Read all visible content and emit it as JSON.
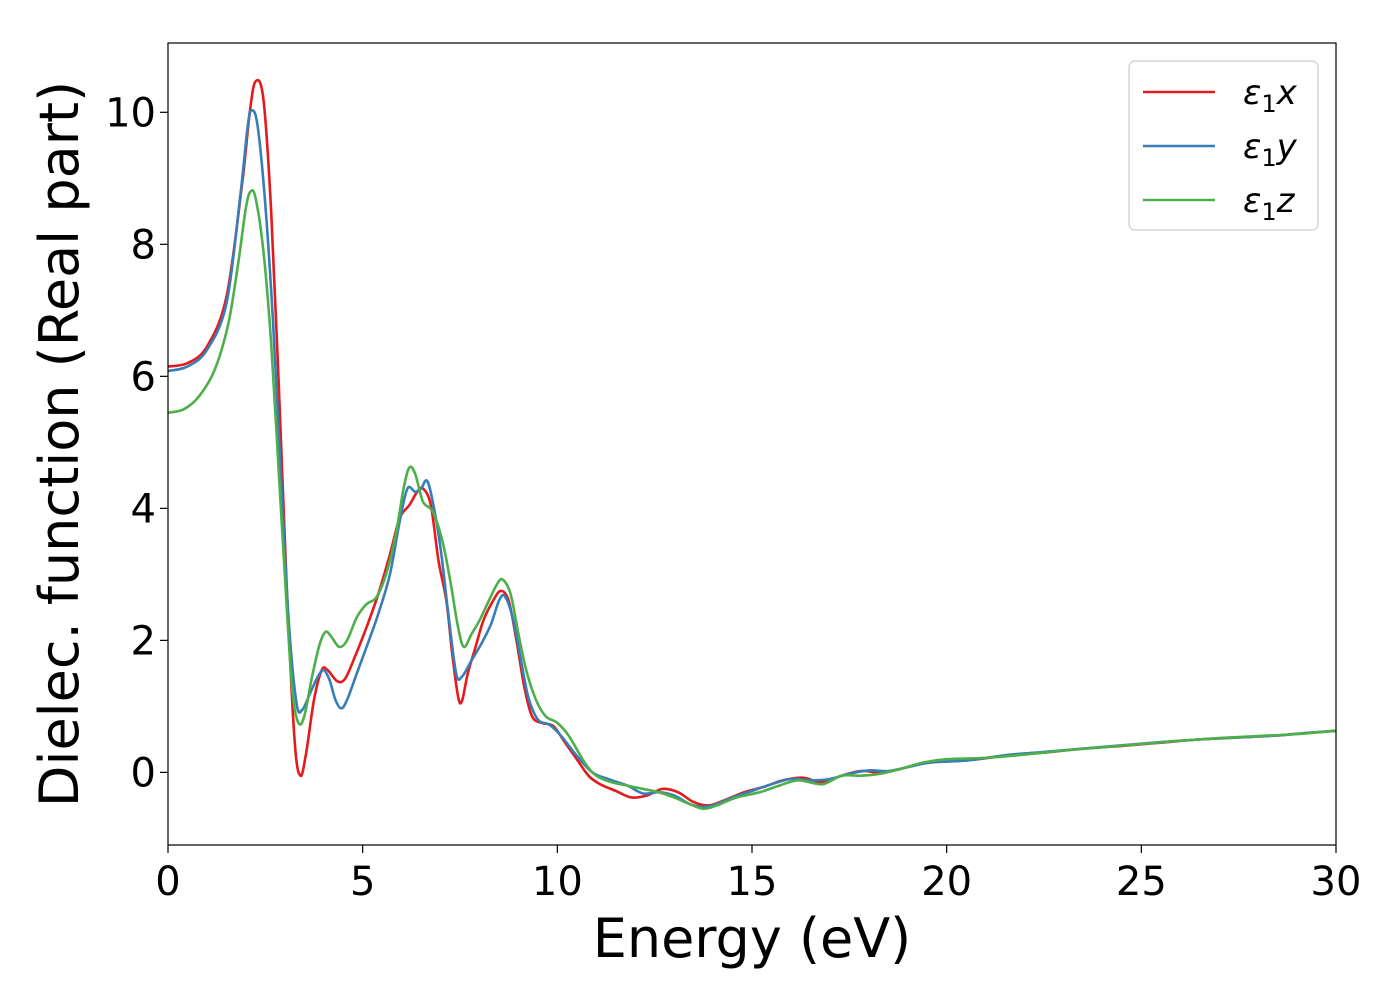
{
  "chart_data": {
    "type": "line",
    "title": "",
    "xlabel": "Energy (eV)",
    "ylabel": "Dielec. function (Real part)",
    "xlim": [
      0,
      30
    ],
    "ylim": [
      -1.1,
      11.05
    ],
    "xticks": [
      0,
      5,
      10,
      15,
      20,
      25,
      30
    ],
    "yticks": [
      0,
      2,
      4,
      6,
      8,
      10
    ],
    "grid": false,
    "legend": "top-right",
    "series": [
      {
        "name": "ε1x",
        "legend_base": "ε",
        "legend_sub": "1",
        "legend_var": "x",
        "color": "#e41a1c",
        "points": [
          [
            0,
            6.15
          ],
          [
            0.5,
            6.2
          ],
          [
            1.0,
            6.45
          ],
          [
            1.5,
            7.2
          ],
          [
            1.9,
            8.9
          ],
          [
            2.1,
            10.0
          ],
          [
            2.25,
            10.47
          ],
          [
            2.45,
            10.2
          ],
          [
            2.65,
            8.5
          ],
          [
            2.85,
            5.8
          ],
          [
            3.05,
            2.8
          ],
          [
            3.25,
            0.5
          ],
          [
            3.4,
            -0.05
          ],
          [
            3.55,
            0.3
          ],
          [
            3.75,
            1.1
          ],
          [
            3.95,
            1.55
          ],
          [
            4.1,
            1.55
          ],
          [
            4.35,
            1.38
          ],
          [
            4.55,
            1.42
          ],
          [
            4.8,
            1.75
          ],
          [
            5.1,
            2.2
          ],
          [
            5.4,
            2.7
          ],
          [
            5.7,
            3.3
          ],
          [
            5.95,
            3.85
          ],
          [
            6.2,
            4.05
          ],
          [
            6.4,
            4.25
          ],
          [
            6.55,
            4.3
          ],
          [
            6.75,
            4.05
          ],
          [
            6.95,
            3.2
          ],
          [
            7.15,
            2.6
          ],
          [
            7.3,
            1.8
          ],
          [
            7.45,
            1.15
          ],
          [
            7.55,
            1.08
          ],
          [
            7.7,
            1.5
          ],
          [
            7.9,
            1.9
          ],
          [
            8.1,
            2.3
          ],
          [
            8.35,
            2.6
          ],
          [
            8.55,
            2.75
          ],
          [
            8.75,
            2.6
          ],
          [
            8.95,
            2.0
          ],
          [
            9.15,
            1.3
          ],
          [
            9.35,
            0.85
          ],
          [
            9.6,
            0.75
          ],
          [
            9.9,
            0.7
          ],
          [
            10.2,
            0.45
          ],
          [
            10.5,
            0.2
          ],
          [
            10.8,
            -0.05
          ],
          [
            11.1,
            -0.18
          ],
          [
            11.5,
            -0.28
          ],
          [
            11.9,
            -0.38
          ],
          [
            12.3,
            -0.35
          ],
          [
            12.7,
            -0.25
          ],
          [
            13.1,
            -0.3
          ],
          [
            13.5,
            -0.45
          ],
          [
            13.9,
            -0.5
          ],
          [
            14.3,
            -0.42
          ],
          [
            14.8,
            -0.3
          ],
          [
            15.3,
            -0.22
          ],
          [
            15.8,
            -0.12
          ],
          [
            16.3,
            -0.08
          ],
          [
            16.8,
            -0.15
          ],
          [
            17.3,
            -0.05
          ],
          [
            17.8,
            0.02
          ],
          [
            18.3,
            0.0
          ],
          [
            18.8,
            0.05
          ],
          [
            19.5,
            0.15
          ],
          [
            20.5,
            0.18
          ],
          [
            21.5,
            0.25
          ],
          [
            22.5,
            0.3
          ],
          [
            23.5,
            0.36
          ],
          [
            24.5,
            0.4
          ],
          [
            25.5,
            0.45
          ],
          [
            26.5,
            0.5
          ],
          [
            27.5,
            0.53
          ],
          [
            28.5,
            0.56
          ],
          [
            29.3,
            0.6
          ],
          [
            30,
            0.63
          ]
        ]
      },
      {
        "name": "ε1y",
        "legend_base": "ε",
        "legend_sub": "1",
        "legend_var": "y",
        "color": "#377eb8",
        "points": [
          [
            0,
            6.08
          ],
          [
            0.5,
            6.15
          ],
          [
            1.0,
            6.4
          ],
          [
            1.5,
            7.1
          ],
          [
            1.85,
            8.7
          ],
          [
            2.05,
            9.8
          ],
          [
            2.15,
            10.03
          ],
          [
            2.3,
            9.8
          ],
          [
            2.5,
            8.6
          ],
          [
            2.7,
            6.8
          ],
          [
            2.9,
            4.5
          ],
          [
            3.1,
            2.3
          ],
          [
            3.3,
            1.05
          ],
          [
            3.45,
            0.95
          ],
          [
            3.65,
            1.2
          ],
          [
            3.85,
            1.45
          ],
          [
            4.0,
            1.55
          ],
          [
            4.15,
            1.4
          ],
          [
            4.3,
            1.1
          ],
          [
            4.45,
            0.97
          ],
          [
            4.6,
            1.1
          ],
          [
            4.85,
            1.5
          ],
          [
            5.1,
            1.9
          ],
          [
            5.4,
            2.4
          ],
          [
            5.7,
            3.0
          ],
          [
            5.95,
            3.8
          ],
          [
            6.15,
            4.3
          ],
          [
            6.35,
            4.25
          ],
          [
            6.5,
            4.3
          ],
          [
            6.65,
            4.42
          ],
          [
            6.8,
            4.1
          ],
          [
            7.0,
            3.4
          ],
          [
            7.2,
            2.4
          ],
          [
            7.4,
            1.5
          ],
          [
            7.55,
            1.45
          ],
          [
            7.8,
            1.7
          ],
          [
            8.05,
            1.95
          ],
          [
            8.3,
            2.25
          ],
          [
            8.5,
            2.6
          ],
          [
            8.65,
            2.67
          ],
          [
            8.85,
            2.35
          ],
          [
            9.05,
            1.75
          ],
          [
            9.25,
            1.15
          ],
          [
            9.5,
            0.8
          ],
          [
            9.8,
            0.72
          ],
          [
            10.1,
            0.55
          ],
          [
            10.5,
            0.25
          ],
          [
            10.9,
            0.0
          ],
          [
            11.3,
            -0.1
          ],
          [
            11.8,
            -0.2
          ],
          [
            12.2,
            -0.32
          ],
          [
            12.6,
            -0.3
          ],
          [
            13.0,
            -0.35
          ],
          [
            13.4,
            -0.48
          ],
          [
            13.7,
            -0.52
          ],
          [
            14.0,
            -0.5
          ],
          [
            14.5,
            -0.38
          ],
          [
            15.0,
            -0.28
          ],
          [
            15.5,
            -0.18
          ],
          [
            16.0,
            -0.1
          ],
          [
            16.5,
            -0.12
          ],
          [
            17.0,
            -0.1
          ],
          [
            17.5,
            -0.02
          ],
          [
            18.0,
            0.03
          ],
          [
            18.5,
            0.02
          ],
          [
            19.0,
            0.08
          ],
          [
            19.6,
            0.15
          ],
          [
            20.5,
            0.18
          ],
          [
            21.5,
            0.26
          ],
          [
            22.5,
            0.31
          ],
          [
            23.5,
            0.36
          ],
          [
            24.5,
            0.41
          ],
          [
            25.5,
            0.46
          ],
          [
            26.5,
            0.5
          ],
          [
            27.5,
            0.53
          ],
          [
            28.5,
            0.56
          ],
          [
            29.3,
            0.6
          ],
          [
            30,
            0.63
          ]
        ]
      },
      {
        "name": "ε1z",
        "legend_base": "ε",
        "legend_sub": "1",
        "legend_var": "z",
        "color": "#4daf4a",
        "points": [
          [
            0,
            5.45
          ],
          [
            0.4,
            5.5
          ],
          [
            0.8,
            5.7
          ],
          [
            1.2,
            6.1
          ],
          [
            1.55,
            6.8
          ],
          [
            1.8,
            7.7
          ],
          [
            2.0,
            8.55
          ],
          [
            2.12,
            8.8
          ],
          [
            2.25,
            8.7
          ],
          [
            2.45,
            7.9
          ],
          [
            2.65,
            6.5
          ],
          [
            2.85,
            4.5
          ],
          [
            3.05,
            2.5
          ],
          [
            3.2,
            1.2
          ],
          [
            3.35,
            0.75
          ],
          [
            3.5,
            0.85
          ],
          [
            3.7,
            1.45
          ],
          [
            3.9,
            1.95
          ],
          [
            4.05,
            2.13
          ],
          [
            4.2,
            2.05
          ],
          [
            4.4,
            1.9
          ],
          [
            4.6,
            2.0
          ],
          [
            4.85,
            2.35
          ],
          [
            5.1,
            2.55
          ],
          [
            5.35,
            2.65
          ],
          [
            5.6,
            3.0
          ],
          [
            5.85,
            3.6
          ],
          [
            6.05,
            4.3
          ],
          [
            6.2,
            4.62
          ],
          [
            6.35,
            4.52
          ],
          [
            6.55,
            4.1
          ],
          [
            6.8,
            3.95
          ],
          [
            7.05,
            3.5
          ],
          [
            7.25,
            2.9
          ],
          [
            7.45,
            2.2
          ],
          [
            7.6,
            1.9
          ],
          [
            7.8,
            2.1
          ],
          [
            8.0,
            2.3
          ],
          [
            8.2,
            2.55
          ],
          [
            8.45,
            2.85
          ],
          [
            8.6,
            2.92
          ],
          [
            8.8,
            2.7
          ],
          [
            9.0,
            2.1
          ],
          [
            9.2,
            1.55
          ],
          [
            9.45,
            1.1
          ],
          [
            9.7,
            0.85
          ],
          [
            10.0,
            0.75
          ],
          [
            10.3,
            0.55
          ],
          [
            10.7,
            0.15
          ],
          [
            11.0,
            -0.05
          ],
          [
            11.4,
            -0.15
          ],
          [
            11.8,
            -0.2
          ],
          [
            12.2,
            -0.25
          ],
          [
            12.6,
            -0.3
          ],
          [
            13.0,
            -0.38
          ],
          [
            13.4,
            -0.48
          ],
          [
            13.75,
            -0.55
          ],
          [
            14.1,
            -0.5
          ],
          [
            14.6,
            -0.38
          ],
          [
            15.2,
            -0.3
          ],
          [
            15.7,
            -0.2
          ],
          [
            16.2,
            -0.12
          ],
          [
            16.8,
            -0.18
          ],
          [
            17.3,
            -0.05
          ],
          [
            17.8,
            -0.05
          ],
          [
            18.3,
            -0.02
          ],
          [
            18.8,
            0.05
          ],
          [
            19.4,
            0.15
          ],
          [
            20.0,
            0.2
          ],
          [
            21.0,
            0.22
          ],
          [
            22.0,
            0.27
          ],
          [
            23.0,
            0.33
          ],
          [
            24.0,
            0.38
          ],
          [
            25.0,
            0.43
          ],
          [
            26.0,
            0.48
          ],
          [
            27.0,
            0.52
          ],
          [
            28.0,
            0.55
          ],
          [
            29.0,
            0.58
          ],
          [
            30,
            0.63
          ]
        ]
      }
    ]
  }
}
